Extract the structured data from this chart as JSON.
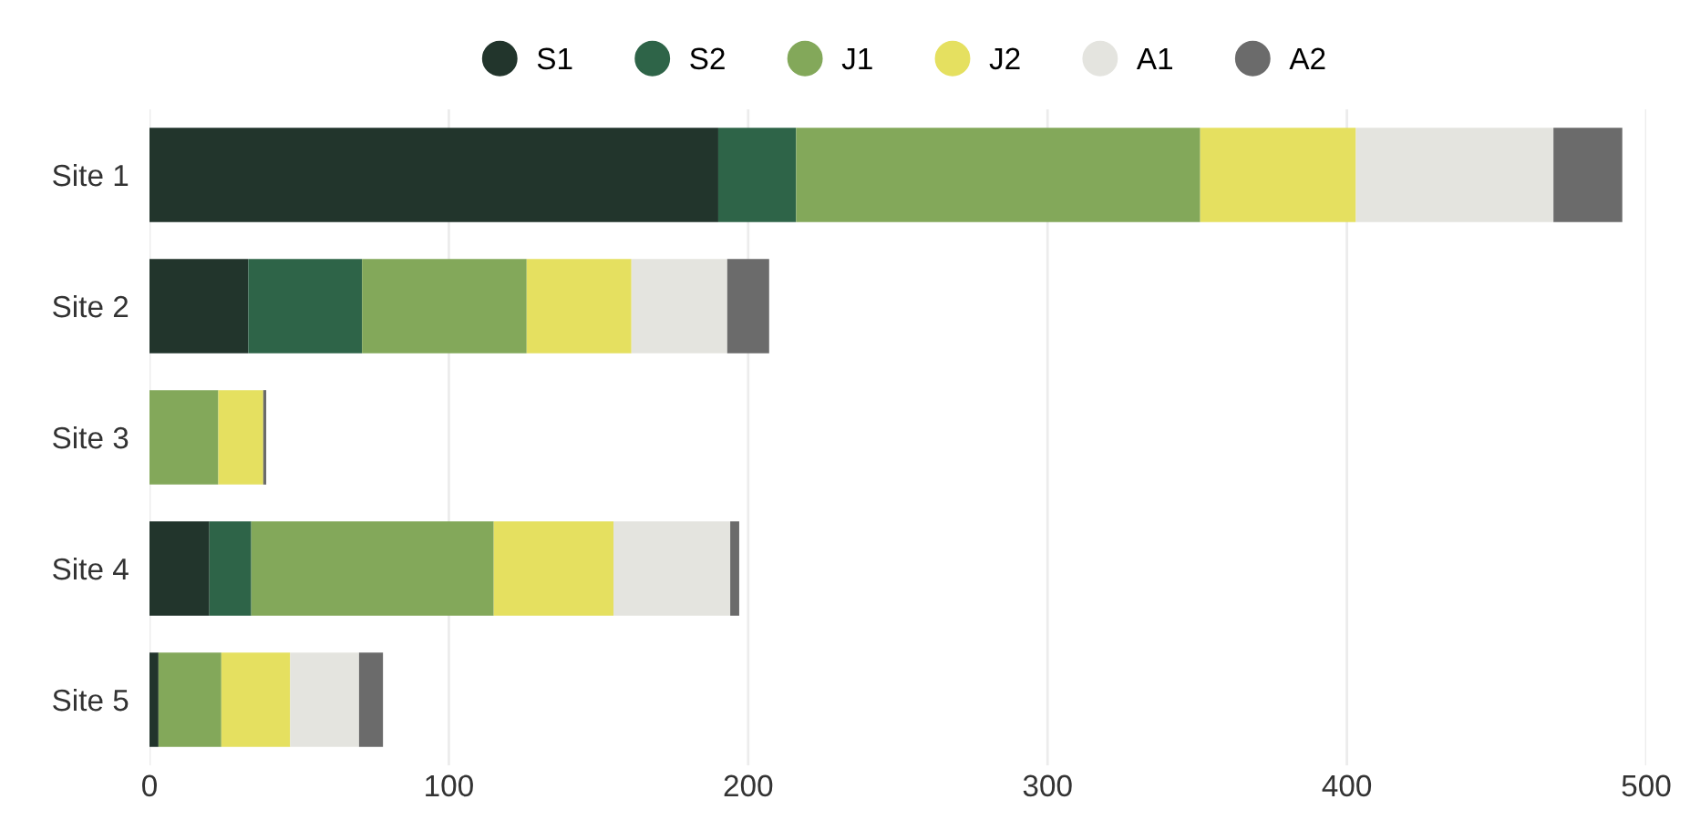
{
  "chart_data": {
    "type": "bar",
    "orientation": "horizontal",
    "stacked": true,
    "categories": [
      "Site 1",
      "Site 2",
      "Site 3",
      "Site 4",
      "Site 5"
    ],
    "series": [
      {
        "name": "S1",
        "color": "#22352c",
        "values": [
          190,
          33,
          0,
          20,
          3
        ]
      },
      {
        "name": "S2",
        "color": "#2e6448",
        "values": [
          26,
          38,
          0,
          14,
          0
        ]
      },
      {
        "name": "J1",
        "color": "#83a85a",
        "values": [
          135,
          55,
          23,
          81,
          21
        ]
      },
      {
        "name": "J2",
        "color": "#e5e060",
        "values": [
          52,
          35,
          15,
          40,
          23
        ]
      },
      {
        "name": "A1",
        "color": "#e4e4df",
        "values": [
          66,
          32,
          0,
          39,
          23
        ]
      },
      {
        "name": "A2",
        "color": "#6b6b6b",
        "values": [
          23,
          14,
          1,
          3,
          8
        ]
      }
    ],
    "xlim": [
      0,
      500
    ],
    "xticks": [
      0,
      100,
      200,
      300,
      400,
      500
    ],
    "grid": "x",
    "legend": "top",
    "marker": "circle"
  }
}
